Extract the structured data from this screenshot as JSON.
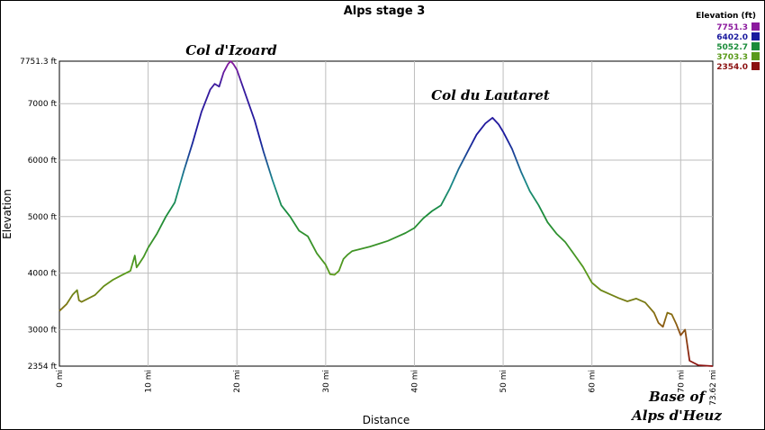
{
  "chart_data": {
    "type": "area",
    "title": "Alps stage 3",
    "xlabel": "Distance",
    "ylabel": "Elevation",
    "xlim": [
      0,
      73.62
    ],
    "ylim": [
      2354,
      7751.3
    ],
    "x_ticks": [
      {
        "value": 0,
        "label": "0 mi"
      },
      {
        "value": 10,
        "label": "10 mi"
      },
      {
        "value": 20,
        "label": "20 mi"
      },
      {
        "value": 30,
        "label": "30 mi"
      },
      {
        "value": 40,
        "label": "40 mi"
      },
      {
        "value": 50,
        "label": "50 mi"
      },
      {
        "value": 60,
        "label": "60 mi"
      },
      {
        "value": 70,
        "label": "70 mi"
      },
      {
        "value": 73.62,
        "label": "73.62 mi"
      }
    ],
    "y_ticks": [
      {
        "value": 2354,
        "label": "2354 ft"
      },
      {
        "value": 3000,
        "label": "3000 ft"
      },
      {
        "value": 4000,
        "label": "4000 ft"
      },
      {
        "value": 5000,
        "label": "5000 ft"
      },
      {
        "value": 6000,
        "label": "6000 ft"
      },
      {
        "value": 7000,
        "label": "7000 ft"
      },
      {
        "value": 7751.3,
        "label": "7751.3 ft"
      }
    ],
    "grid": true,
    "legend": {
      "title": "Elevation (ft)",
      "placement": "top-right",
      "entries": [
        {
          "label": "7751.3",
          "color": "#8b1a9e"
        },
        {
          "label": "6402.0",
          "color": "#1a1a9e"
        },
        {
          "label": "5052.7",
          "color": "#1a8c3a"
        },
        {
          "label": "3703.3",
          "color": "#5a9a1a"
        },
        {
          "label": "2354.0",
          "color": "#8b1010"
        }
      ]
    },
    "annotations": [
      {
        "text": "Col d'Izoard",
        "x": 19.3,
        "y": 7751.3
      },
      {
        "text": "Col du Lautaret",
        "x": 48.8,
        "y": 6750
      },
      {
        "text": "Base of",
        "x": 68,
        "y": 2100
      },
      {
        "text": "Alps d'Heuz",
        "x": 68,
        "y": 1700
      }
    ],
    "series": [
      {
        "x": [
          0,
          0.8,
          1.5,
          2.0,
          2.2,
          2.5,
          3.0,
          4.0,
          5.0,
          6.0,
          7.0,
          8.0,
          8.5,
          8.7,
          9.0,
          9.5,
          10.0,
          11.0,
          12.0,
          13.0,
          14.0,
          15.0,
          16.0,
          17.0,
          17.5,
          18.0,
          18.5,
          19.0,
          19.3,
          19.6,
          20.0,
          21.0,
          22.0,
          23.0,
          24.0,
          25.0,
          26.0,
          27.0,
          28.0,
          29.0,
          29.5,
          30.0,
          30.5,
          31.0,
          31.5,
          32.0,
          32.5,
          33.0,
          34.0,
          35.0,
          36.0,
          37.0,
          38.0,
          39.0,
          40.0,
          41.0,
          42.0,
          43.0,
          44.0,
          45.0,
          46.0,
          47.0,
          48.0,
          48.8,
          49.5,
          50.0,
          51.0,
          52.0,
          53.0,
          54.0,
          55.0,
          56.0,
          57.0,
          58.0,
          59.0,
          60.0,
          61.0,
          62.0,
          63.0,
          64.0,
          65.0,
          66.0,
          67.0,
          67.5,
          68.0,
          68.5,
          69.0,
          69.5,
          70.0,
          70.5,
          71.0,
          72.0,
          73.0,
          73.62
        ],
        "values": [
          3330,
          3450,
          3620,
          3700,
          3520,
          3490,
          3530,
          3610,
          3770,
          3880,
          3960,
          4040,
          4310,
          4100,
          4170,
          4290,
          4450,
          4700,
          5000,
          5250,
          5800,
          6300,
          6850,
          7250,
          7350,
          7300,
          7550,
          7700,
          7751,
          7700,
          7600,
          7150,
          6700,
          6150,
          5650,
          5200,
          5000,
          4750,
          4650,
          4350,
          4250,
          4150,
          3980,
          3970,
          4040,
          4250,
          4330,
          4390,
          4430,
          4470,
          4520,
          4570,
          4640,
          4710,
          4800,
          4970,
          5100,
          5200,
          5500,
          5850,
          6150,
          6450,
          6650,
          6750,
          6630,
          6500,
          6200,
          5800,
          5450,
          5200,
          4900,
          4700,
          4550,
          4330,
          4110,
          3830,
          3700,
          3630,
          3560,
          3500,
          3550,
          3480,
          3300,
          3120,
          3050,
          3300,
          3270,
          3100,
          2900,
          3000,
          2450,
          2370,
          2360,
          2354
        ]
      }
    ]
  }
}
